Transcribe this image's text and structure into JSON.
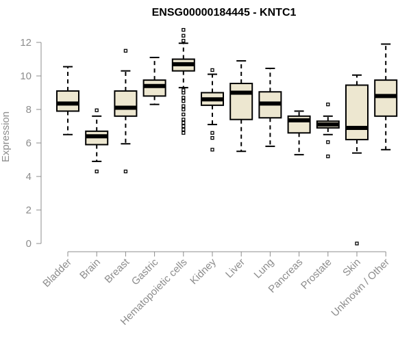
{
  "chart_data": {
    "type": "boxplot",
    "title": "ENSG00000184445 - KNTC1",
    "ylabel": "Expression",
    "xlabel": "",
    "ylim": [
      0,
      12.8
    ],
    "yticks": [
      0,
      2,
      4,
      6,
      8,
      10,
      12
    ],
    "grid": false,
    "box_fill": "#ede7d0",
    "box_stroke": "#000000",
    "axis_color": "#8c8c8c",
    "categories": [
      "Bladder",
      "Brain",
      "Breast",
      "Gastric",
      "Hematopoietic cells",
      "Kidney",
      "Liver",
      "Lung",
      "Pancreas",
      "Prostate",
      "Skin",
      "Unknown / Other"
    ],
    "boxes": [
      {
        "whisker_low": 6.5,
        "q1": 7.9,
        "median": 8.35,
        "q3": 9.1,
        "whisker_high": 10.55,
        "outliers": []
      },
      {
        "whisker_low": 4.9,
        "q1": 5.9,
        "median": 6.4,
        "q3": 6.7,
        "whisker_high": 7.6,
        "outliers": [
          4.3,
          7.95
        ]
      },
      {
        "whisker_low": 5.95,
        "q1": 7.6,
        "median": 8.1,
        "q3": 9.1,
        "whisker_high": 10.3,
        "outliers": [
          4.3,
          11.5
        ]
      },
      {
        "whisker_low": 8.3,
        "q1": 8.8,
        "median": 9.4,
        "q3": 9.75,
        "whisker_high": 11.1,
        "outliers": []
      },
      {
        "whisker_low": 9.3,
        "q1": 10.3,
        "median": 10.7,
        "q3": 11.0,
        "whisker_high": 11.95,
        "outliers": [
          6.6,
          6.8,
          7.0,
          7.2,
          7.4,
          7.7,
          8.0,
          8.2,
          8.5,
          8.7,
          9.0,
          9.15,
          12.1,
          12.4,
          12.75
        ]
      },
      {
        "whisker_low": 7.1,
        "q1": 8.25,
        "median": 8.6,
        "q3": 9.0,
        "whisker_high": 10.1,
        "outliers": [
          5.6,
          6.3,
          6.6,
          10.35
        ]
      },
      {
        "whisker_low": 5.5,
        "q1": 7.4,
        "median": 9.0,
        "q3": 9.55,
        "whisker_high": 10.9,
        "outliers": []
      },
      {
        "whisker_low": 5.8,
        "q1": 7.5,
        "median": 8.35,
        "q3": 9.05,
        "whisker_high": 10.45,
        "outliers": []
      },
      {
        "whisker_low": 5.3,
        "q1": 6.6,
        "median": 7.35,
        "q3": 7.6,
        "whisker_high": 7.9,
        "outliers": []
      },
      {
        "whisker_low": 6.5,
        "q1": 6.9,
        "median": 7.1,
        "q3": 7.3,
        "whisker_high": 7.6,
        "outliers": [
          5.2,
          6.05,
          8.3
        ]
      },
      {
        "whisker_low": 5.4,
        "q1": 6.2,
        "median": 6.9,
        "q3": 9.45,
        "whisker_high": 10.05,
        "outliers": [
          0.0
        ]
      },
      {
        "whisker_low": 5.6,
        "q1": 7.6,
        "median": 8.8,
        "q3": 9.75,
        "whisker_high": 11.9,
        "outliers": []
      }
    ]
  }
}
